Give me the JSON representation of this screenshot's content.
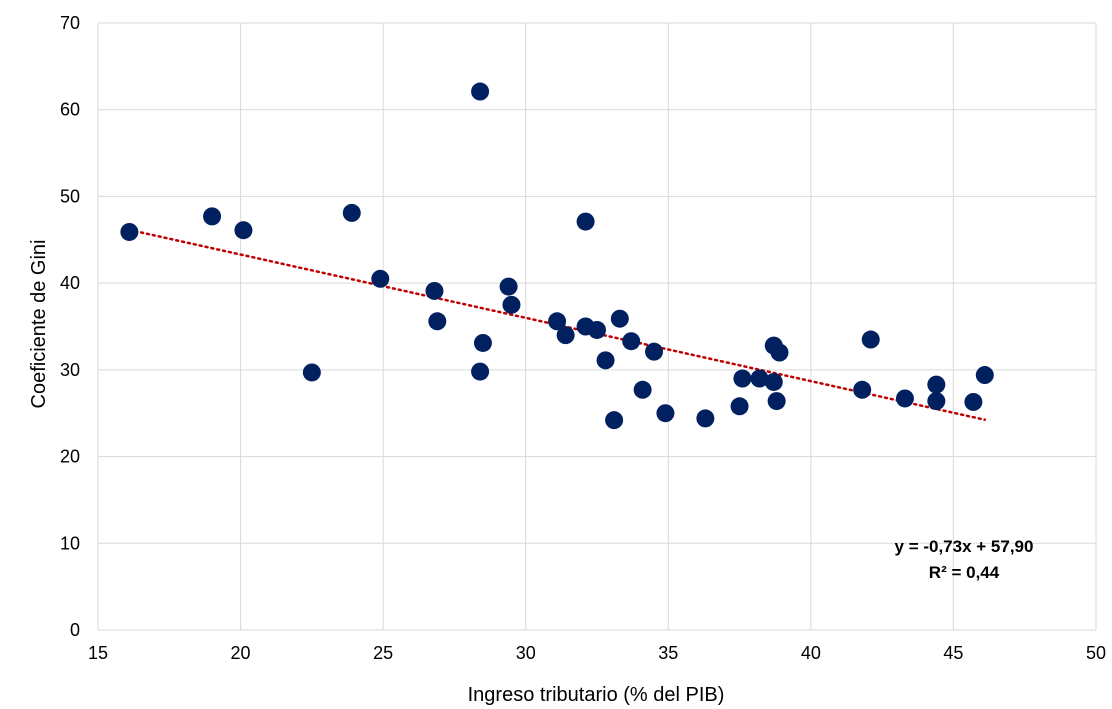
{
  "chart_data": {
    "type": "scatter",
    "title": "",
    "xlabel": "Ingreso tributario (% del PIB)",
    "ylabel": "Coeficiente de Gini",
    "xlim": [
      15,
      50
    ],
    "ylim": [
      0,
      70
    ],
    "xticks": [
      15,
      20,
      25,
      30,
      35,
      40,
      45,
      50
    ],
    "yticks": [
      0,
      10,
      20,
      30,
      40,
      50,
      60,
      70
    ],
    "grid": true,
    "legend": "none",
    "marker_color": "#002060",
    "trendline": {
      "type": "linear",
      "color": "#c00000",
      "style": "dotted",
      "slope": -0.73,
      "intercept": 57.9,
      "x_range": [
        16.1,
        46.1
      ],
      "equation": "y = -0,73x + 57,90",
      "r_squared": "R² = 0,44"
    },
    "points": [
      {
        "x": 16.1,
        "y": 45.9
      },
      {
        "x": 19.0,
        "y": 47.7
      },
      {
        "x": 20.1,
        "y": 46.1
      },
      {
        "x": 22.5,
        "y": 29.7
      },
      {
        "x": 23.9,
        "y": 48.1
      },
      {
        "x": 24.9,
        "y": 40.5
      },
      {
        "x": 26.8,
        "y": 39.1
      },
      {
        "x": 26.9,
        "y": 35.6
      },
      {
        "x": 28.4,
        "y": 62.1
      },
      {
        "x": 28.4,
        "y": 29.8
      },
      {
        "x": 28.5,
        "y": 33.1
      },
      {
        "x": 29.4,
        "y": 39.6
      },
      {
        "x": 29.5,
        "y": 37.5
      },
      {
        "x": 31.1,
        "y": 35.6
      },
      {
        "x": 31.4,
        "y": 34.0
      },
      {
        "x": 32.1,
        "y": 47.1
      },
      {
        "x": 32.1,
        "y": 35.0
      },
      {
        "x": 32.5,
        "y": 34.6
      },
      {
        "x": 32.8,
        "y": 31.1
      },
      {
        "x": 33.1,
        "y": 24.2
      },
      {
        "x": 33.3,
        "y": 35.9
      },
      {
        "x": 33.7,
        "y": 33.3
      },
      {
        "x": 34.1,
        "y": 27.7
      },
      {
        "x": 34.5,
        "y": 32.1
      },
      {
        "x": 34.9,
        "y": 25.0
      },
      {
        "x": 36.3,
        "y": 24.4
      },
      {
        "x": 37.5,
        "y": 25.8
      },
      {
        "x": 37.6,
        "y": 29.0
      },
      {
        "x": 38.2,
        "y": 29.0
      },
      {
        "x": 38.7,
        "y": 28.6
      },
      {
        "x": 38.7,
        "y": 32.8
      },
      {
        "x": 38.8,
        "y": 26.4
      },
      {
        "x": 38.9,
        "y": 32.0
      },
      {
        "x": 41.8,
        "y": 27.7
      },
      {
        "x": 42.1,
        "y": 33.5
      },
      {
        "x": 43.3,
        "y": 26.7
      },
      {
        "x": 44.4,
        "y": 28.3
      },
      {
        "x": 44.4,
        "y": 26.4
      },
      {
        "x": 45.7,
        "y": 26.3
      },
      {
        "x": 46.1,
        "y": 29.4
      }
    ]
  }
}
